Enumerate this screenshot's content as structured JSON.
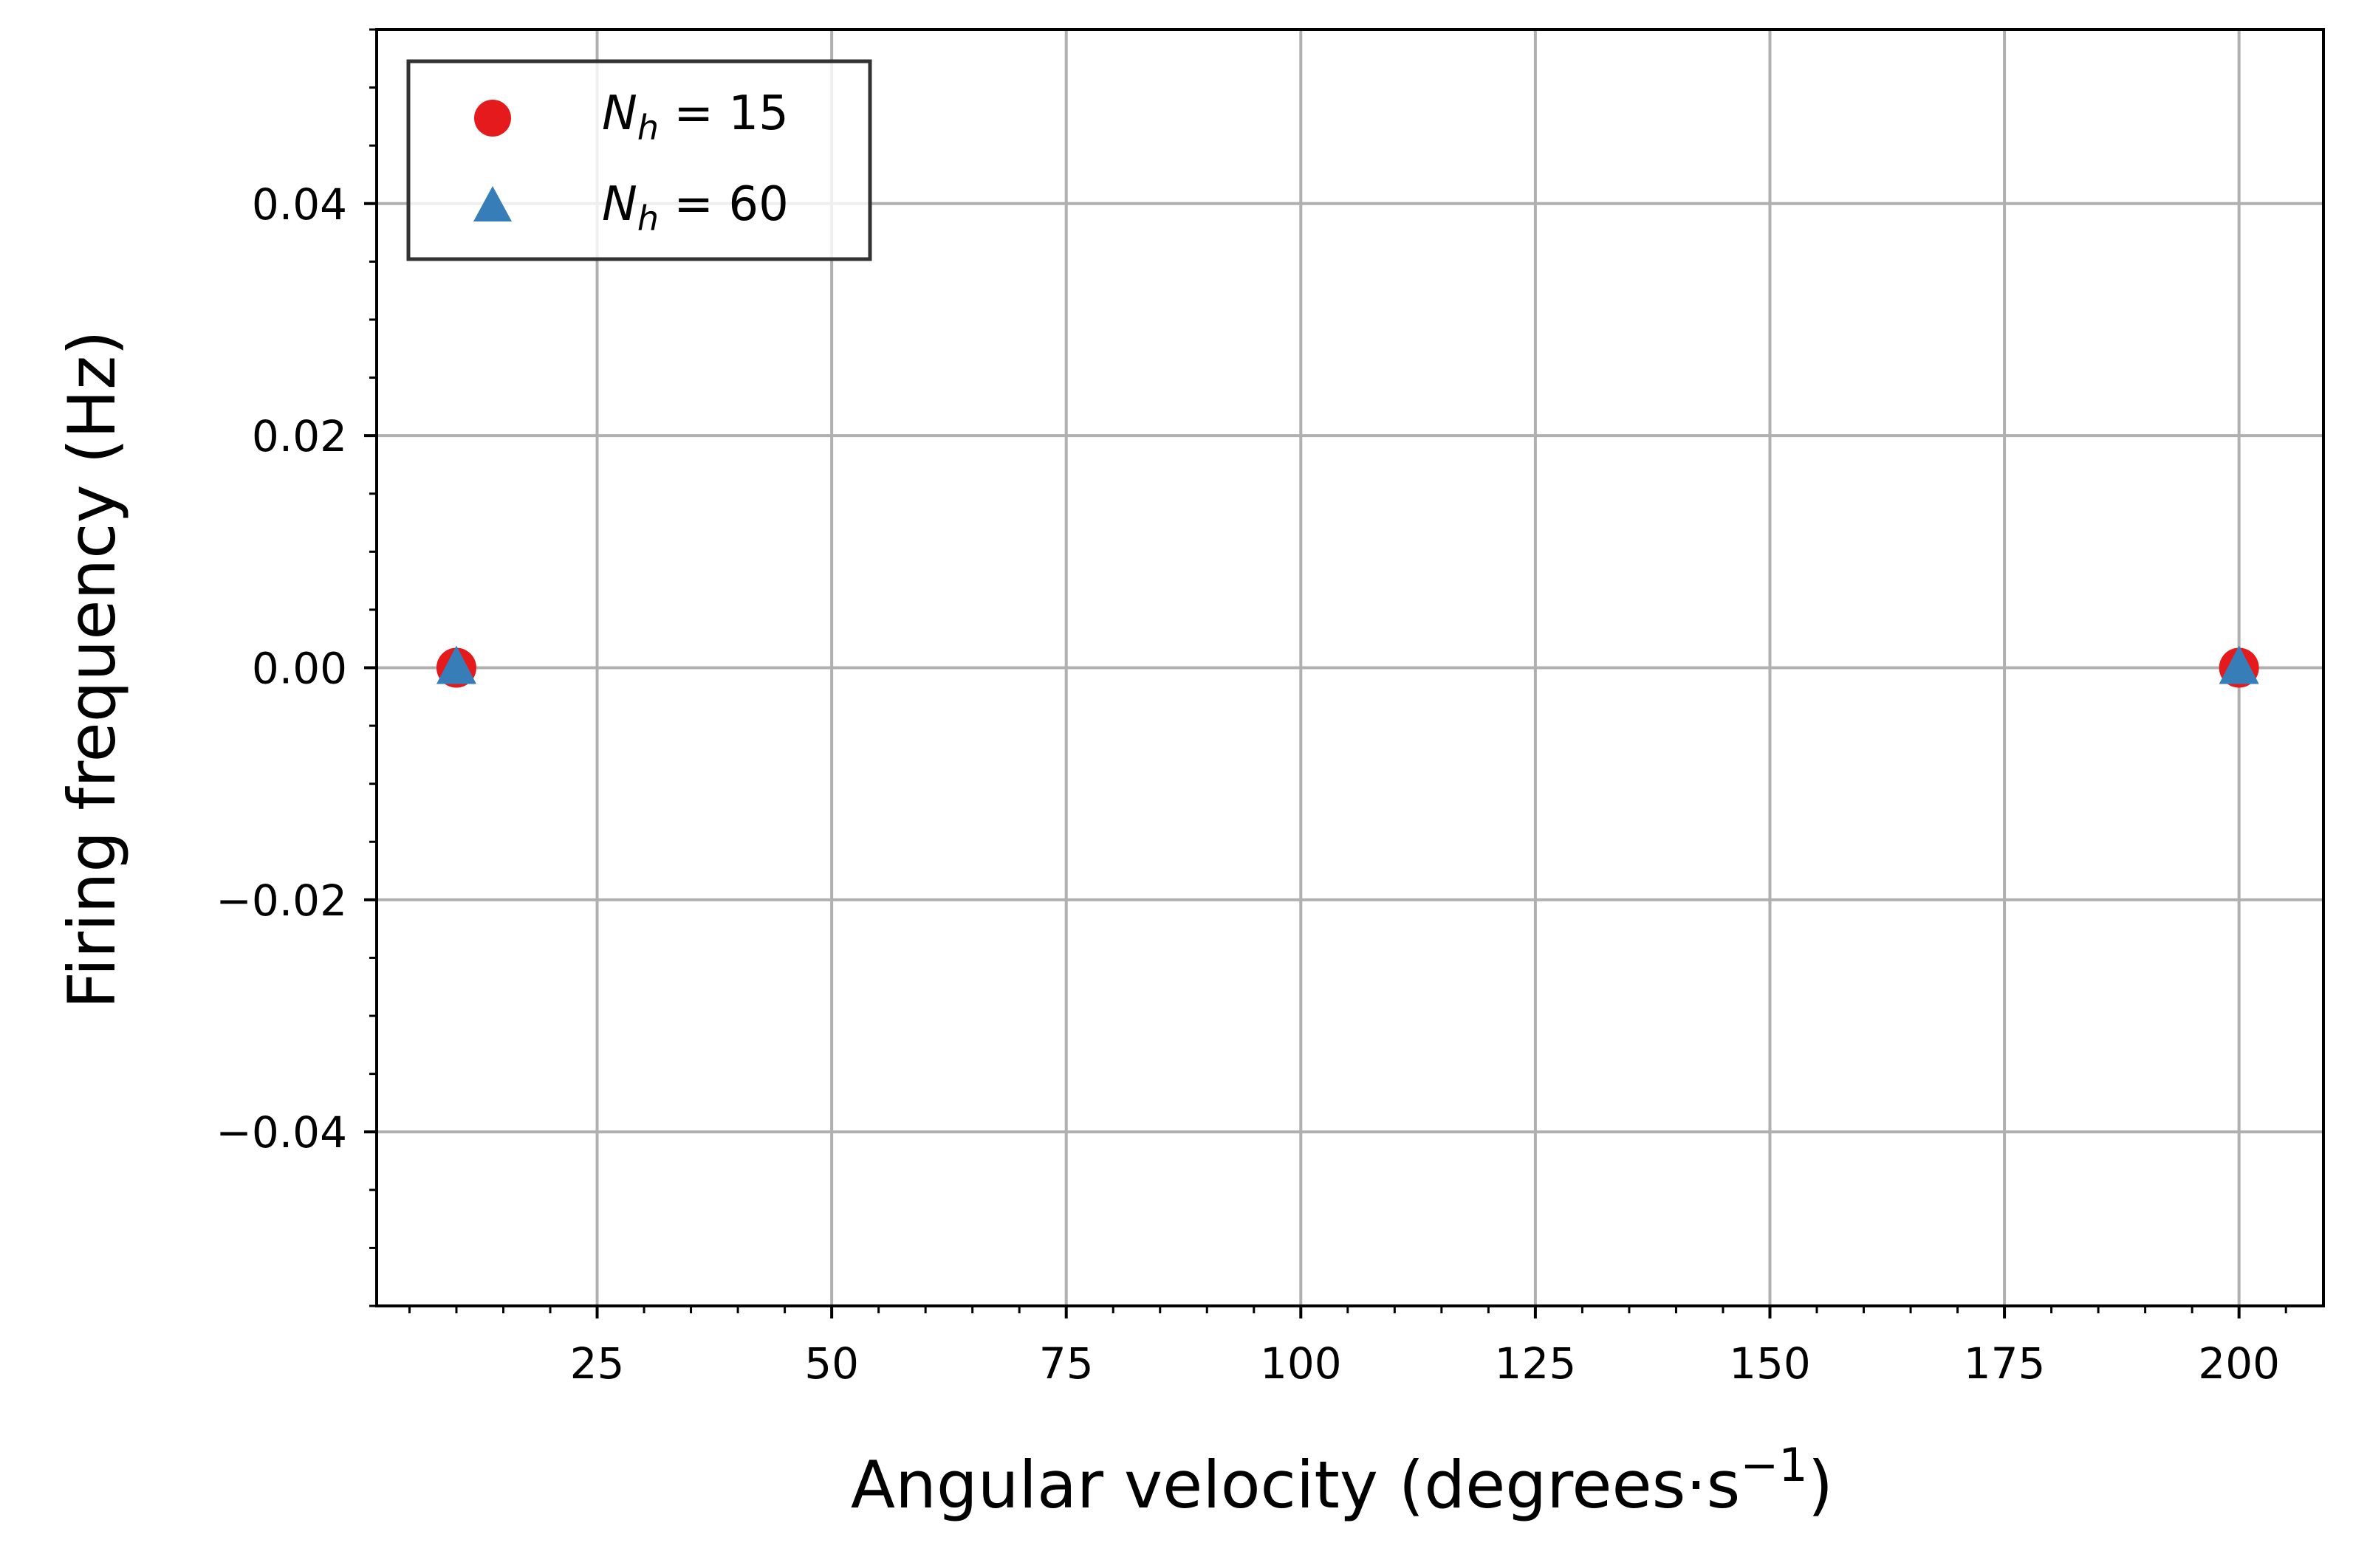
{
  "chart_data": {
    "type": "scatter",
    "xlabel": "Angular velocity (degrees·s",
    "xlabel_sup": "−1",
    "xlabel_close": ")",
    "ylabel": "Firing frequency (Hz)",
    "xlim": [
      1.5,
      209
    ],
    "ylim": [
      -0.055,
      0.055
    ],
    "x_ticks": [
      25,
      50,
      75,
      100,
      125,
      150,
      175,
      200
    ],
    "x_tick_labels": [
      "25",
      "50",
      "75",
      "100",
      "125",
      "150",
      "175",
      "200"
    ],
    "x_minor_step": 5,
    "y_ticks": [
      -0.04,
      -0.02,
      0.0,
      0.02,
      0.04
    ],
    "y_tick_labels": [
      "−0.04",
      "−0.02",
      "0.00",
      "0.02",
      "0.04"
    ],
    "y_minor_step": 0.005,
    "grid": true,
    "legend_position": "top-left",
    "series": [
      {
        "legend_base": "N",
        "legend_sub": "h",
        "legend_value": " = 15",
        "marker": "circle",
        "color": "#e41a1c",
        "x": [
          10,
          200
        ],
        "y": [
          0.0,
          0.0
        ]
      },
      {
        "legend_base": "N",
        "legend_sub": "h",
        "legend_value": " = 60",
        "marker": "triangle",
        "color": "#377eb8",
        "x": [
          10,
          200
        ],
        "y": [
          0.0,
          0.0
        ]
      }
    ]
  }
}
